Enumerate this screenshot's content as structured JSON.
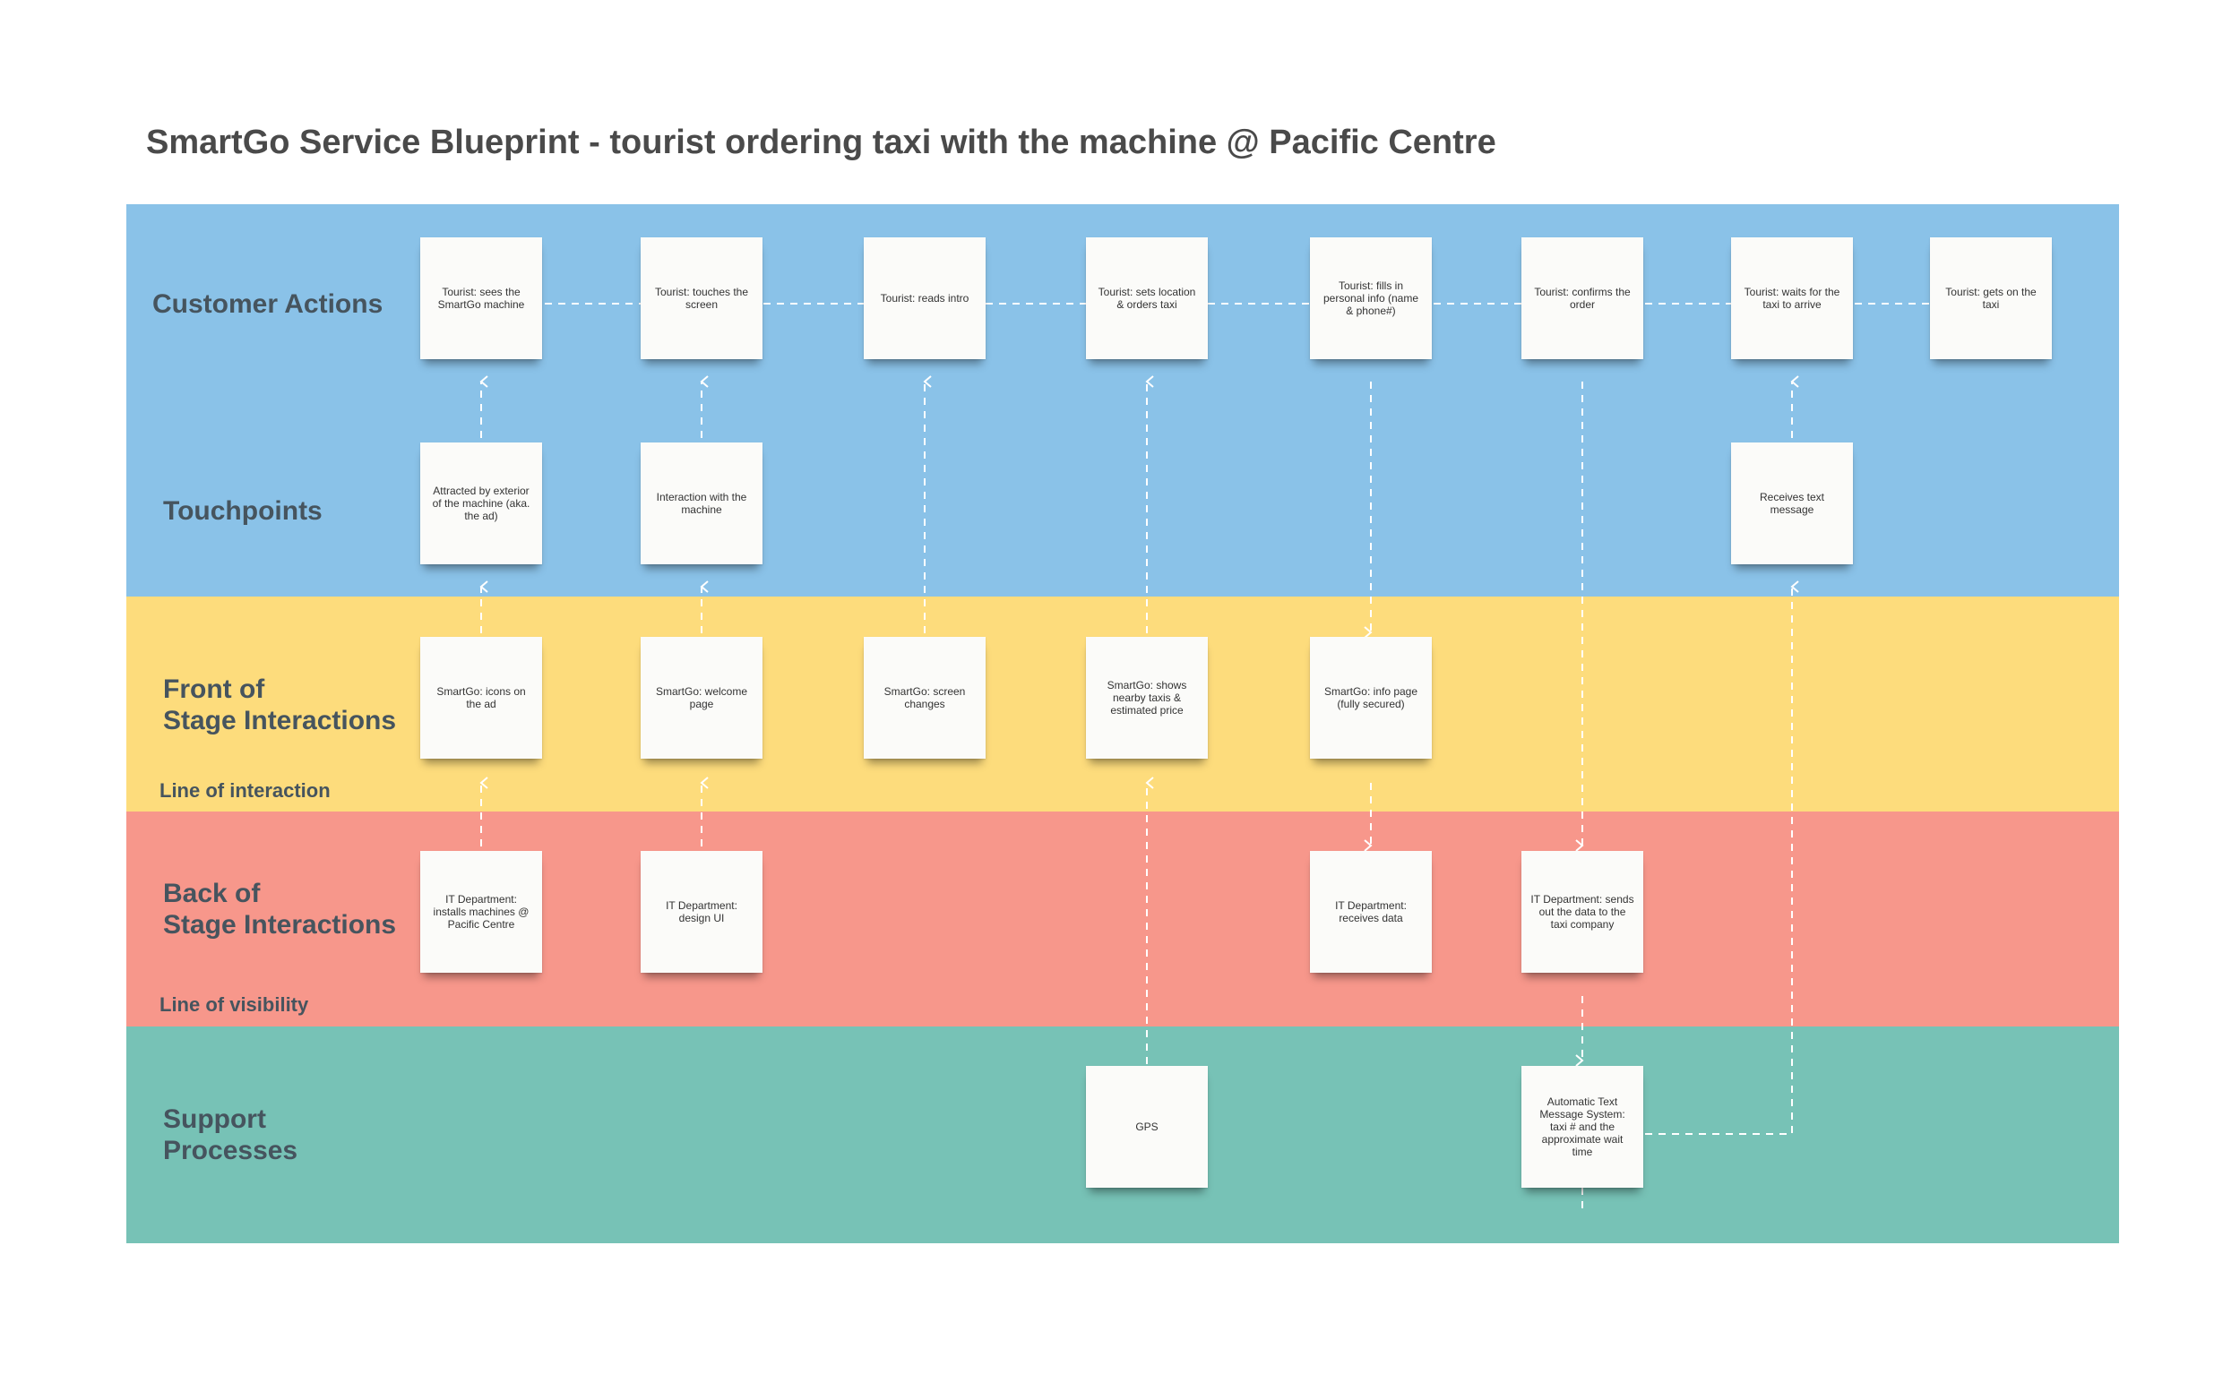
{
  "title": "SmartGo Service Blueprint - tourist ordering taxi with the machine @ Pacific Centre",
  "lanes": {
    "customer_actions": "Customer Actions",
    "touchpoints": "Touchpoints",
    "front_stage": "Front of\nStage Interactions",
    "back_stage": "Back of\nStage Interactions",
    "support": "Support\nProcesses"
  },
  "lines": {
    "interaction": "Line of interaction",
    "visibility": "Line of visibility"
  },
  "notes": {
    "ca1": "Tourist: sees the SmartGo machine",
    "ca2": "Tourist: touches the screen",
    "ca3": "Tourist: reads intro",
    "ca4": "Tourist: sets location & orders taxi",
    "ca5": "Tourist: fills in personal info (name & phone#)",
    "ca6": "Tourist: confirms the order",
    "ca7": "Tourist: waits for the taxi to arrive",
    "ca8": "Tourist: gets on the taxi",
    "tp1": "Attracted by exterior of the machine (aka. the ad)",
    "tp2": "Interaction with the machine",
    "tp3": "Receives text message",
    "fs1": "SmartGo: icons on the ad",
    "fs2": "SmartGo: welcome page",
    "fs3": "SmartGo: screen changes",
    "fs4": "SmartGo: shows nearby taxis & estimated price",
    "fs5": "SmartGo: info page (fully secured)",
    "bs1": "IT Department: installs machines @ Pacific Centre",
    "bs2": "IT Department: design UI",
    "bs3": "IT Department: receives data",
    "bs4": "IT Department: sends out the data to the taxi company",
    "sp1": "GPS",
    "sp2": "Automatic Text Message System: taxi # and the approximate wait time"
  }
}
